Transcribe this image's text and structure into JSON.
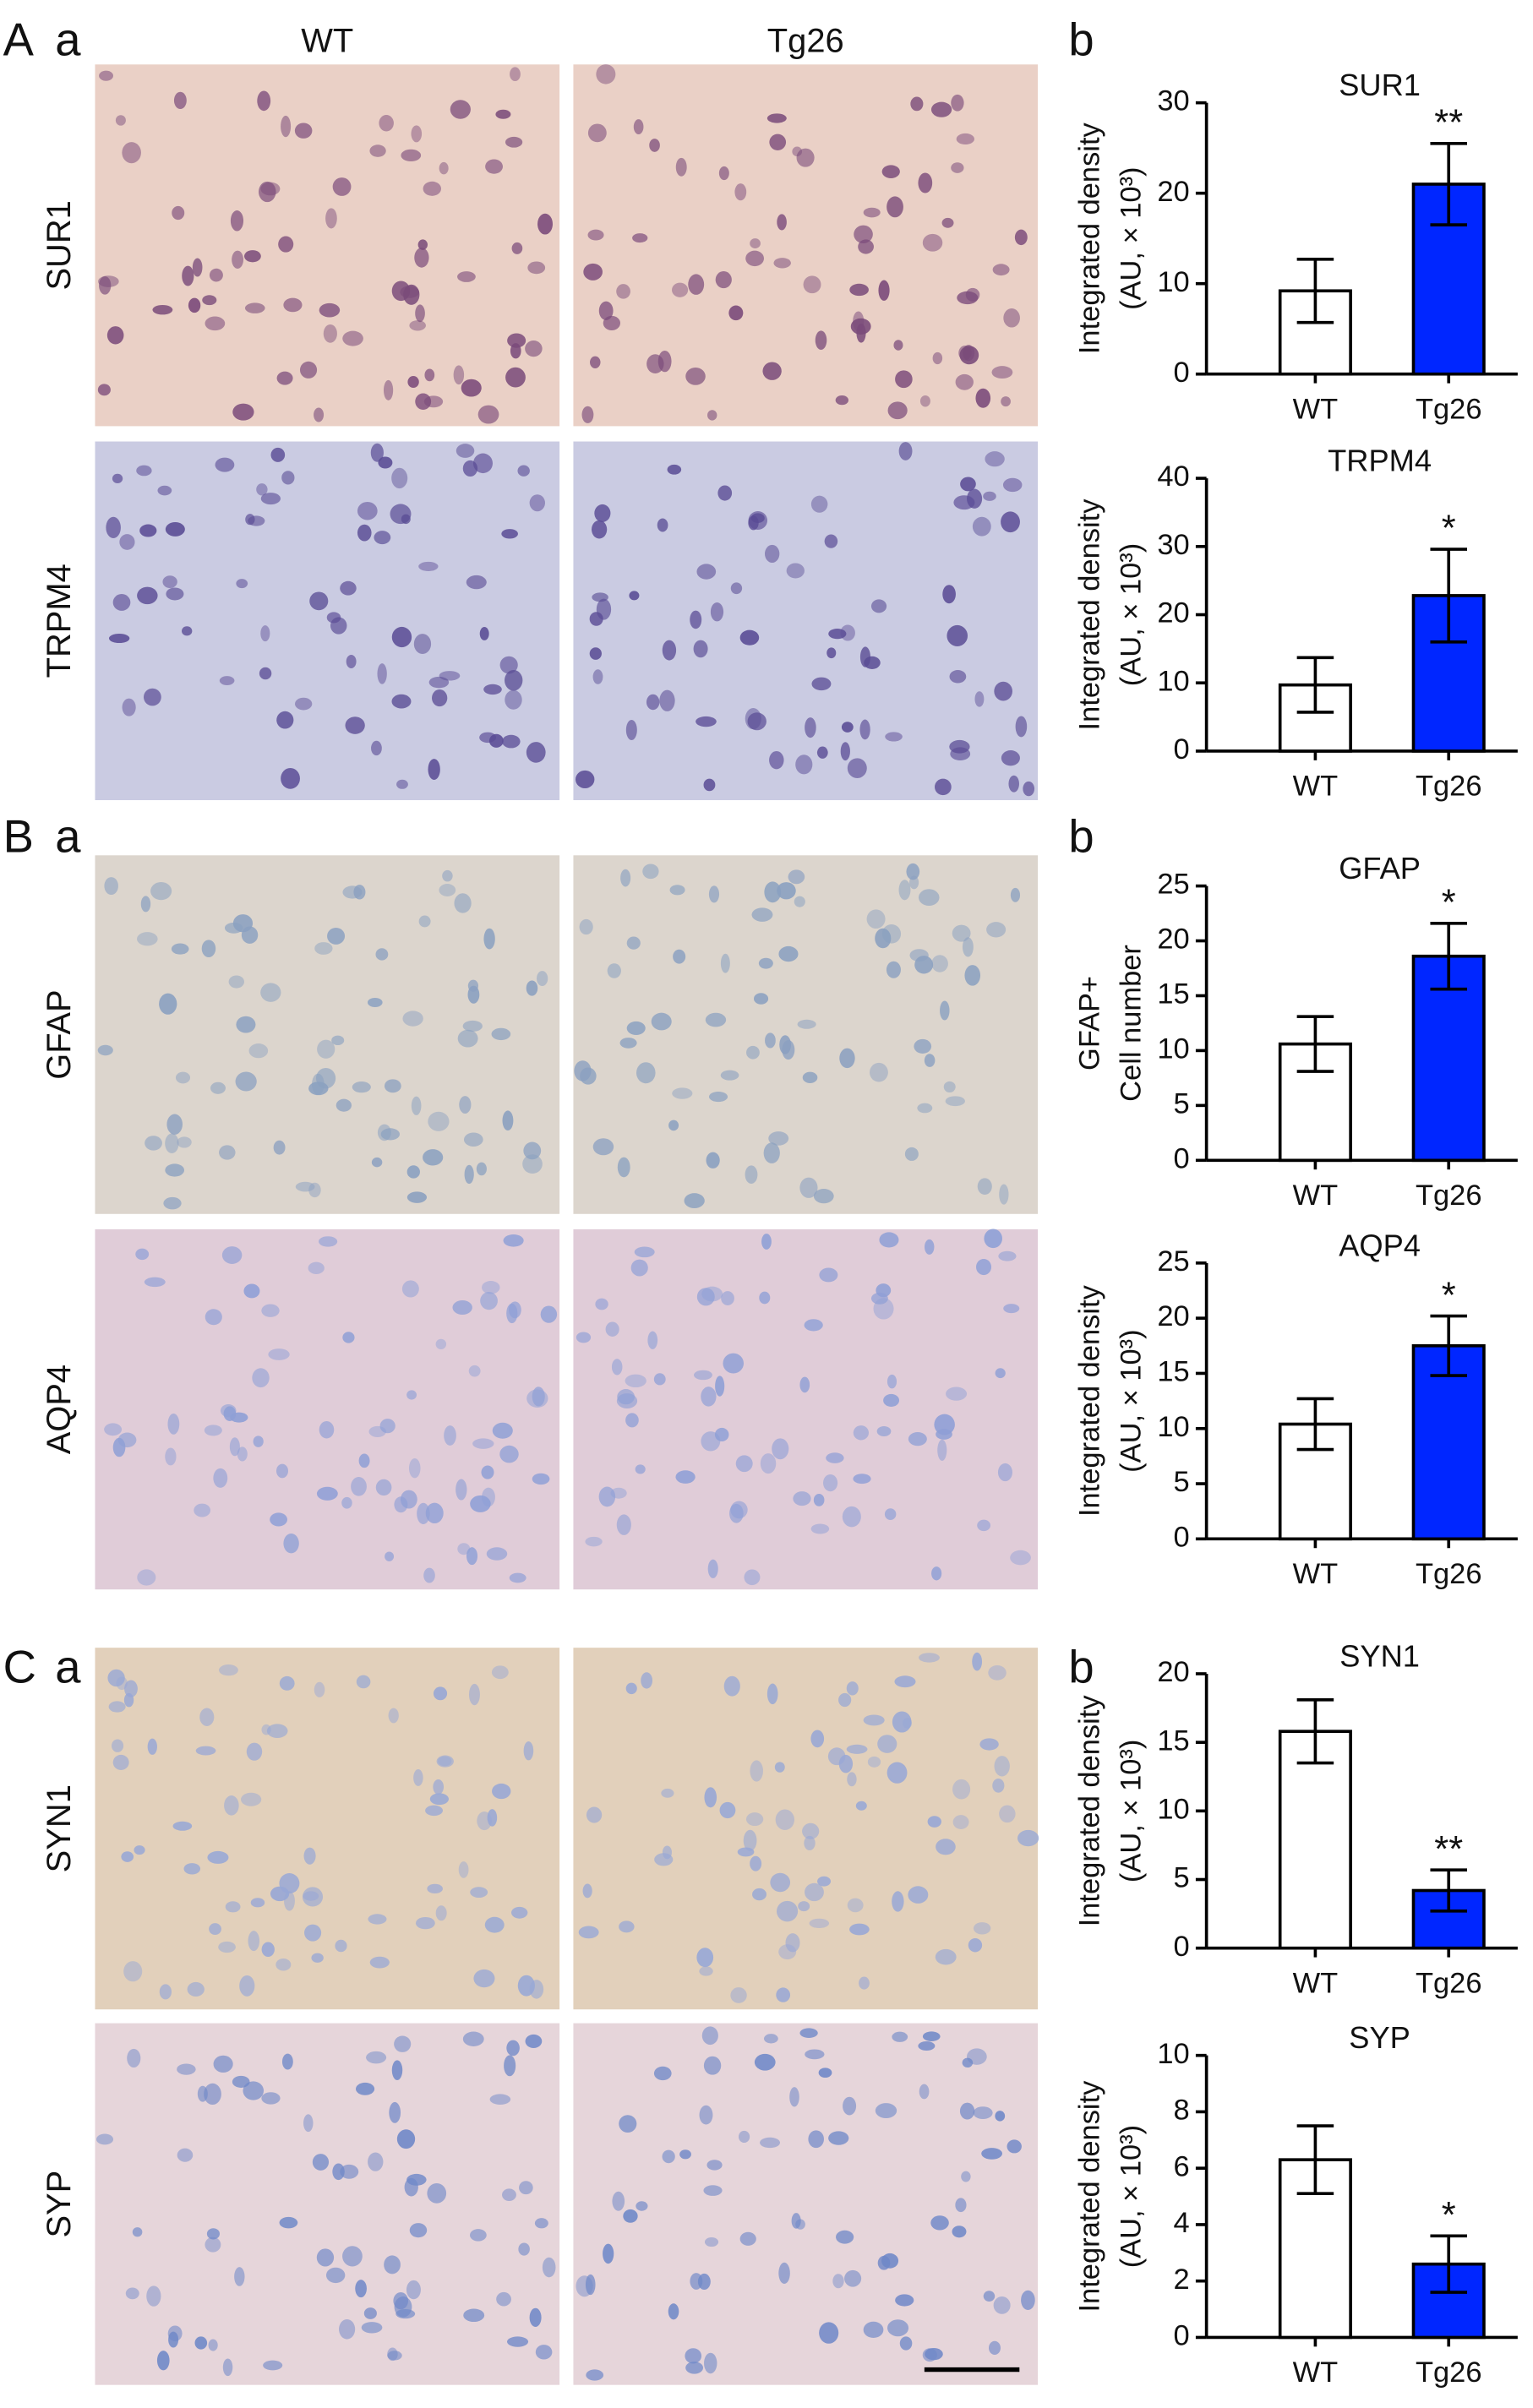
{
  "columns": [
    "WT",
    "Tg26"
  ],
  "panels": [
    {
      "letter": "A",
      "left": "a",
      "right": "b",
      "rows": [
        "SUR1",
        "TRPM4"
      ]
    },
    {
      "letter": "B",
      "left": "a",
      "right": "b",
      "rows": [
        "GFAP",
        "AQP4"
      ]
    },
    {
      "letter": "C",
      "left": "a",
      "right": "b",
      "rows": [
        "SYN1",
        "SYP"
      ]
    }
  ],
  "chart_data": [
    {
      "type": "bar",
      "title": "SUR1",
      "ylabel": [
        "Integrated density",
        "(AU, × 10³)"
      ],
      "categories": [
        "WT",
        "Tg26"
      ],
      "values": [
        9.2,
        21
      ],
      "errors": [
        3.5,
        4.5
      ],
      "colors": [
        "#ffffff",
        "#0026ff"
      ],
      "significance": [
        null,
        "**"
      ],
      "ylim": [
        0,
        30
      ],
      "yticks": [
        0,
        10,
        20,
        30
      ]
    },
    {
      "type": "bar",
      "title": "TRPM4",
      "ylabel": [
        "Integrated density",
        "(AU, × 10³)"
      ],
      "categories": [
        "WT",
        "Tg26"
      ],
      "values": [
        9.7,
        22.8
      ],
      "errors": [
        4,
        6.8
      ],
      "colors": [
        "#ffffff",
        "#0026ff"
      ],
      "significance": [
        null,
        "*"
      ],
      "ylim": [
        0,
        40
      ],
      "yticks": [
        0,
        10,
        20,
        30,
        40
      ]
    },
    {
      "type": "bar",
      "title": "GFAP",
      "ylabel": [
        "GFAP+",
        "Cell number"
      ],
      "categories": [
        "WT",
        "Tg26"
      ],
      "values": [
        10.6,
        18.6
      ],
      "errors": [
        2.5,
        3
      ],
      "colors": [
        "#ffffff",
        "#0026ff"
      ],
      "significance": [
        null,
        "*"
      ],
      "ylim": [
        0,
        25
      ],
      "yticks": [
        0,
        5,
        10,
        15,
        20,
        25
      ]
    },
    {
      "type": "bar",
      "title": "AQP4",
      "ylabel": [
        "Integrated density",
        "(AU, × 10³)"
      ],
      "categories": [
        "WT",
        "Tg26"
      ],
      "values": [
        10.4,
        17.5
      ],
      "errors": [
        2.3,
        2.7
      ],
      "colors": [
        "#ffffff",
        "#0026ff"
      ],
      "significance": [
        null,
        "*"
      ],
      "ylim": [
        0,
        25
      ],
      "yticks": [
        0,
        5,
        10,
        15,
        20,
        25
      ]
    },
    {
      "type": "bar",
      "title": "SYN1",
      "ylabel": [
        "Integrated density",
        "(AU, × 10³)"
      ],
      "categories": [
        "WT",
        "Tg26"
      ],
      "values": [
        15.8,
        4.2
      ],
      "errors": [
        2.3,
        1.5
      ],
      "colors": [
        "#ffffff",
        "#0026ff"
      ],
      "significance": [
        null,
        "**"
      ],
      "ylim": [
        0,
        20
      ],
      "yticks": [
        0,
        5,
        10,
        15,
        20
      ]
    },
    {
      "type": "bar",
      "title": "SYP",
      "ylabel": [
        "Integrated density",
        "(AU, × 10³)"
      ],
      "categories": [
        "WT",
        "Tg26"
      ],
      "values": [
        6.3,
        2.6
      ],
      "errors": [
        1.2,
        1.0
      ],
      "colors": [
        "#ffffff",
        "#0026ff"
      ],
      "significance": [
        null,
        "*"
      ],
      "ylim": [
        0,
        10
      ],
      "yticks": [
        0,
        2,
        4,
        6,
        8,
        10
      ]
    }
  ]
}
